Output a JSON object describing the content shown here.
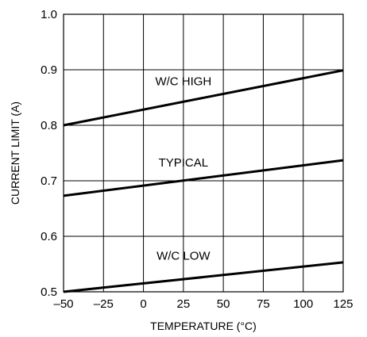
{
  "chart_data": {
    "type": "line",
    "xlabel": "TEMPERATURE (°C)",
    "ylabel": "CURRENT LIMIT (A)",
    "xlim": [
      -50,
      125
    ],
    "ylim": [
      0.5,
      1.0
    ],
    "xticks": [
      -50,
      -25,
      0,
      25,
      50,
      75,
      100,
      125
    ],
    "xtick_labels": [
      "–50",
      "–25",
      "0",
      "25",
      "50",
      "75",
      "100",
      "125"
    ],
    "yticks": [
      0.5,
      0.6,
      0.7,
      0.8,
      0.9,
      1.0
    ],
    "ytick_labels": [
      "0.5",
      "0.6",
      "0.7",
      "0.8",
      "0.9",
      "1.0"
    ],
    "grid": true,
    "series": [
      {
        "name": "W/C HIGH",
        "x": [
          -50,
          125
        ],
        "y": [
          0.8,
          0.899
        ],
        "label_at": [
          25,
          0.872
        ]
      },
      {
        "name": "TYPICAL",
        "x": [
          -50,
          125
        ],
        "y": [
          0.673,
          0.737
        ],
        "label_at": [
          25,
          0.726
        ]
      },
      {
        "name": "W/C LOW",
        "x": [
          -50,
          125
        ],
        "y": [
          0.5,
          0.553
        ],
        "label_at": [
          25,
          0.558
        ]
      }
    ]
  }
}
